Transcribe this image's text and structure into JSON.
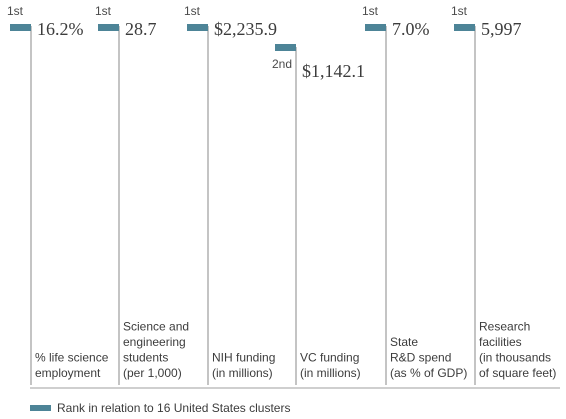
{
  "chart_data": {
    "type": "ranking",
    "colors": {
      "marker": "#4d8497",
      "divider": "#cfcfcf",
      "line": "#8a8a8a"
    },
    "metrics": [
      {
        "rank": "1st",
        "value": "16.2%",
        "label_lines": [
          "% life science",
          "employment"
        ]
      },
      {
        "rank": "1st",
        "value": "28.7",
        "label_lines": [
          "Science and",
          "engineering",
          "students",
          "(per 1,000)"
        ]
      },
      {
        "rank": "1st",
        "value": "$2,235.9",
        "label_lines": [
          "NIH funding",
          "(in millions)"
        ]
      },
      {
        "rank": "2nd",
        "value": "$1,142.1",
        "label_lines": [
          "VC funding",
          "(in millions)"
        ]
      },
      {
        "rank": "1st",
        "value": "7.0%",
        "label_lines": [
          "State",
          "R&D spend",
          "(as % of GDP)"
        ]
      },
      {
        "rank": "1st",
        "value": "5,997",
        "label_lines": [
          "Research",
          "facilities",
          "(in thousands",
          "of square feet)"
        ]
      }
    ],
    "legend": {
      "label": "Rank in relation to 16 United States clusters"
    }
  }
}
